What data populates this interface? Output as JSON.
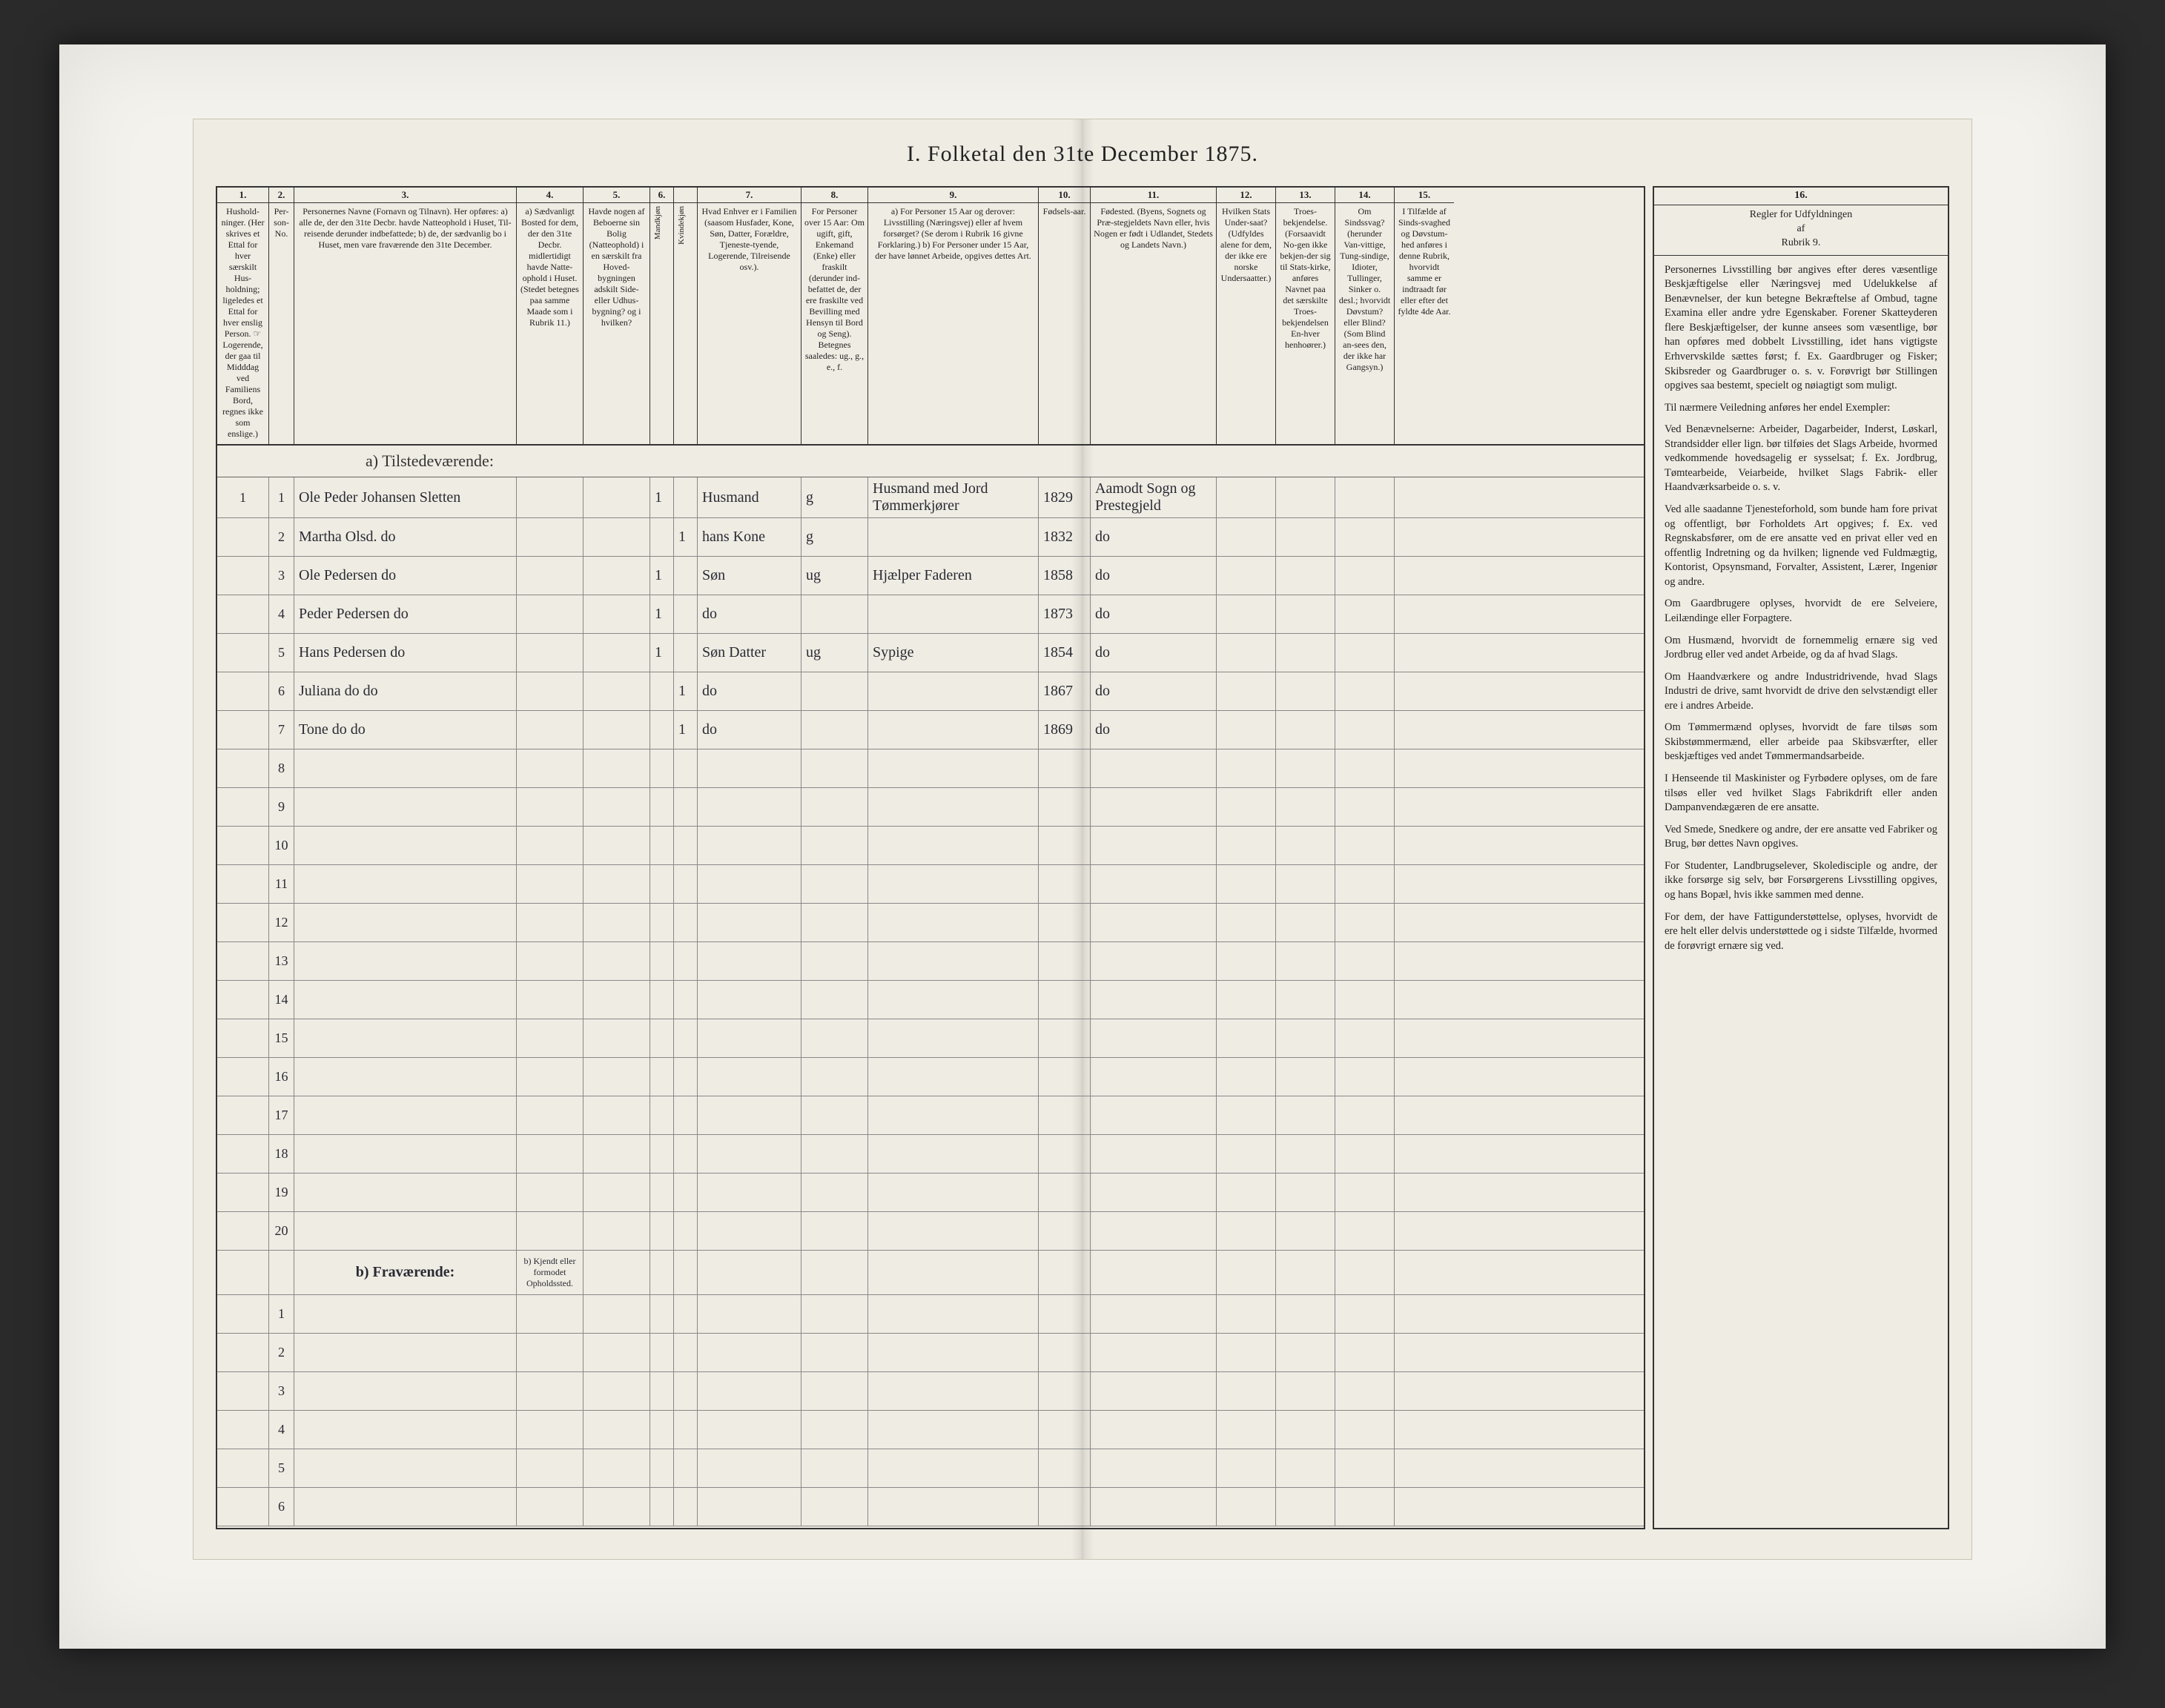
{
  "page": {
    "title": "I.  Folketal den 31te December 1875.",
    "bg": "#efece3",
    "frame_bg": "#f4f2ec",
    "outer_bg": "#2a2a2a",
    "ink": "#222222",
    "handwriting_color": "#2a2a34",
    "rule_color": "#888888",
    "heavy_rule_color": "#333333"
  },
  "columns": [
    {
      "num": "1.",
      "label": "Hushold-\nninger.\n(Her skrives et Ettal for hver særskilt Hus-holdning; ligeledes et Ettal for hver enslig Person. ☞ Logerende, der gaa til Midddag ved Familiens Bord, regnes ikke som enslige.)",
      "w": "w1"
    },
    {
      "num": "2.",
      "label": "Per-\nson-\nNo.",
      "w": "w2"
    },
    {
      "num": "3.",
      "label": "Personernes Navne (Fornavn og Tilnavn).\nHer opføres:\na) alle de, der den 31te Decbr. havde Natteophold i Huset, Til-reisende derunder indbefattede;\nb) de, der sædvanlig bo i Huset, men vare fraværende den 31te December.",
      "w": "w3"
    },
    {
      "num": "4.",
      "label": "a) Sædvanligt Bosted for dem, der den 31te Decbr. midlertidigt havde Natte-ophold i Huset. (Stedet betegnes paa samme Maade som i Rubrik 11.)",
      "w": "w4"
    },
    {
      "num": "5.",
      "label": "Havde nogen af Beboerne sin Bolig (Natteophold) i en særskilt fra Hoved-bygningen adskilt Side- eller Udhus-bygning? og i hvilken?",
      "w": "w5"
    },
    {
      "num": "6.",
      "label": "Kjøn. Ettal i ved-kom-mende Rubrik.",
      "w": "",
      "sub": [
        "Mandkjøn",
        "Kvindekjøn"
      ]
    },
    {
      "num": "7.",
      "label": "Hvad Enhver er i Familien (saasom Husfader, Kone, Søn, Datter, Forældre, Tjeneste-tyende, Logerende, Tilreisende osv.).",
      "w": "w7"
    },
    {
      "num": "8.",
      "label": "For Personer over 15 Aar: Om ugift, gift, Enkemand (Enke) eller fraskilt (derunder ind-befattet de, der ere fraskilte ved Bevilling med Hensyn til Bord og Seng). Betegnes saaledes: ug., g., e., f.",
      "w": "w8"
    },
    {
      "num": "9.",
      "label": "a) For Personer 15 Aar og derover: Livsstilling (Næringsvej) eller af hvem forsørget? (Se derom i Rubrik 16 givne Forklaring.)\nb) For Personer under 15 Aar, der have lønnet Arbeide, opgives dettes Art.",
      "w": "w9"
    },
    {
      "num": "10.",
      "label": "Fødsels-aar.",
      "w": "w10"
    },
    {
      "num": "11.",
      "label": "Fødested.\n(Byens, Sognets og Præ-stegjeldets Navn eller, hvis Nogen er født i Udlandet, Stedets og Landets Navn.)",
      "w": "w11"
    },
    {
      "num": "12.",
      "label": "Hvilken Stats Under-saat? (Udfyldes alene for dem, der ikke ere norske Undersaatter.)",
      "w": "w12"
    },
    {
      "num": "13.",
      "label": "Troes-bekjendelse. (Forsaavidt No-gen ikke bekjen-der sig til Stats-kirke, anføres Navnet paa det særskilte Troes-bekjendelsen En-hver henhoører.)",
      "w": "w13"
    },
    {
      "num": "14.",
      "label": "Om Sindssvag? (herunder Van-vittige, Tung-sindige, Idioter, Tullinger, Sinker o. desl.; hvorvidt Døvstum? eller Blind? (Som Blind an-sees den, der ikke har Gangsyn.)",
      "w": "w14"
    },
    {
      "num": "15.",
      "label": "I Tilfælde af Sinds-svaghed og Døvstum-hed anføres i denne Rubrik, hvorvidt samme er indtraadt før eller efter det fyldte 4de Aar.",
      "w": "w15"
    }
  ],
  "section_a": "a) Tilstedeværende:",
  "section_b": "b) Fraværende:",
  "section_b_col4": "b) Kjendt eller formodet Opholdssted.",
  "rows_a": [
    {
      "n": "1",
      "name": "Ole Peder Johansen Sletten",
      "c4": "",
      "c5": "",
      "m": "1",
      "k": "",
      "fam": "Husmand",
      "ms": "g",
      "occ": "Husmand med Jord Tømmerkjører",
      "yr": "1829",
      "place": "Aamodt Sogn og Prestegjeld",
      "c12": "",
      "c13": "",
      "c14": "",
      "c15": ""
    },
    {
      "n": "2",
      "name": "Martha Olsd.          do",
      "c4": "",
      "c5": "",
      "m": "",
      "k": "1",
      "fam": "hans Kone",
      "ms": "g",
      "occ": "",
      "yr": "1832",
      "place": "do",
      "c12": "",
      "c13": "",
      "c14": "",
      "c15": ""
    },
    {
      "n": "3",
      "name": "Ole Pedersen          do",
      "c4": "",
      "c5": "",
      "m": "1",
      "k": "",
      "fam": "Søn",
      "ms": "ug",
      "occ": "Hjælper Faderen",
      "yr": "1858",
      "place": "do",
      "c12": "",
      "c13": "",
      "c14": "",
      "c15": ""
    },
    {
      "n": "4",
      "name": "Peder Pedersen        do",
      "c4": "",
      "c5": "",
      "m": "1",
      "k": "",
      "fam": "do",
      "ms": "",
      "occ": "",
      "yr": "1873",
      "place": "do",
      "c12": "",
      "c13": "",
      "c14": "",
      "c15": ""
    },
    {
      "n": "5",
      "name": "Hans Pedersen         do",
      "c4": "",
      "c5": "",
      "m": "1",
      "k": "",
      "fam": "Søn Datter",
      "ms": "ug",
      "occ": "Sypige",
      "yr": "1854",
      "place": "do",
      "c12": "",
      "c13": "",
      "c14": "",
      "c15": ""
    },
    {
      "n": "6",
      "name": "Juliana   do          do",
      "c4": "",
      "c5": "",
      "m": "",
      "k": "1",
      "fam": "do",
      "ms": "",
      "occ": "",
      "yr": "1867",
      "place": "do",
      "c12": "",
      "c13": "",
      "c14": "",
      "c15": ""
    },
    {
      "n": "7",
      "name": "Tone      do          do",
      "c4": "",
      "c5": "",
      "m": "",
      "k": "1",
      "fam": "do",
      "ms": "",
      "occ": "",
      "yr": "1869",
      "place": "do",
      "c12": "",
      "c13": "",
      "c14": "",
      "c15": ""
    }
  ],
  "empty_a_rows": [
    "8",
    "9",
    "10",
    "11",
    "12",
    "13",
    "14",
    "15",
    "16",
    "17",
    "18",
    "19",
    "20"
  ],
  "empty_b_rows": [
    "1",
    "2",
    "3",
    "4",
    "5",
    "6"
  ],
  "rules": {
    "col_num": "16.",
    "heading": "Regler for Udfyldningen\naf\nRubrik 9.",
    "paras": [
      "Personernes Livsstilling bør angives efter deres væsentlige Beskjæftigelse eller Næringsvej med Udelukkelse af Benævnelser, der kun betegne Bekræftelse af Ombud, tagne Examina eller andre ydre Egenskaber. Forener Skatteyderen flere Beskjæftigelser, der kunne ansees som væsentlige, bør han opføres med dobbelt Livsstilling, idet hans vigtigste Erhvervskilde sættes først; f. Ex. Gaardbruger og Fisker; Skibsreder og Gaardbruger o. s. v. Forøvrigt bør Stillingen opgives saa bestemt, specielt og nøiagtigt som muligt.",
      "Til nærmere Veiledning anføres her endel Exempler:",
      "Ved Benævnelserne: Arbeider, Dagarbeider, Inderst, Løskarl, Strandsidder eller lign. bør tilføies det Slags Arbeide, hvormed vedkommende hovedsagelig er sysselsat; f. Ex. Jordbrug, Tømtearbeide, Veiarbeide, hvilket Slags Fabrik- eller Haandværksarbeide o. s. v.",
      "Ved alle saadanne Tjenesteforhold, som bunde ham fore privat og offentligt, bør Forholdets Art opgives; f. Ex. ved Regnskabsfører, om de ere ansatte ved en privat eller ved en offentlig Indretning og da hvilken; lignende ved Fuldmægtig, Kontorist, Opsynsmand, Forvalter, Assistent, Lærer, Ingeniør og andre.",
      "Om Gaardbrugere oplyses, hvorvidt de ere Selveiere, Leilændinge eller Forpagtere.",
      "Om Husmænd, hvorvidt de fornemmelig ernære sig ved Jordbrug eller ved andet Arbeide, og da af hvad Slags.",
      "Om Haandværkere og andre Industridrivende, hvad Slags Industri de drive, samt hvorvidt de drive den selvstændigt eller ere i andres Arbeide.",
      "Om Tømmermænd oplyses, hvorvidt de fare tilsøs som Skibstømmermænd, eller arbeide paa Skibsværfter, eller beskjæftiges ved andet Tømmermandsarbeide.",
      "I Henseende til Maskinister og Fyrbødere oplyses, om de fare tilsøs eller ved hvilket Slags Fabrikdrift eller anden Dampanvendægæren de ere ansatte.",
      "Ved Smede, Snedkere og andre, der ere ansatte ved Fabriker og Brug, bør dettes Navn opgives.",
      "For Studenter, Landbrugselever, Skoledisciple og andre, der ikke forsørge sig selv, bør Forsørgerens Livsstilling opgives, og hans Bopæl, hvis ikke sammen med denne.",
      "For dem, der have Fattigunderstøttelse, oplyses, hvorvidt de ere helt eller delvis understøttede og i sidste Tilfælde, hvormed de forøvrigt ernære sig ved."
    ]
  }
}
